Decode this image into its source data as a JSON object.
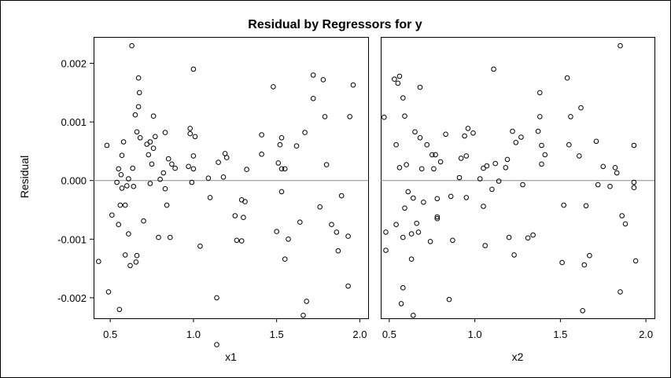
{
  "chart_data": {
    "type": "scatter",
    "title": "Residual by Regressors for y",
    "ylabel": "Residual",
    "ylim": [
      -0.00235,
      0.00245
    ],
    "yticks": [
      0.002,
      0.001,
      0.0,
      -0.001,
      -0.002
    ],
    "ytick_labels": [
      "0.002",
      "0.001",
      "0.000",
      "-0.001",
      "-0.002"
    ],
    "reference_line_y": 0,
    "grid": false,
    "panels": [
      {
        "xlabel": "x1",
        "xlim": [
          0.4,
          2.05
        ],
        "xticks": [
          0.5,
          1.0,
          1.5,
          2.0
        ],
        "xtick_labels": [
          "0.5",
          "1.0",
          "1.5",
          "2.0"
        ],
        "points": [
          [
            0.43,
            -0.00138
          ],
          [
            0.48,
            0.0006
          ],
          [
            0.49,
            -0.0019
          ],
          [
            0.51,
            -0.00059
          ],
          [
            0.54,
            -3e-05
          ],
          [
            0.55,
            0.0002
          ],
          [
            0.55,
            -0.00075
          ],
          [
            0.555,
            -0.0022
          ],
          [
            0.56,
            -0.00042
          ],
          [
            0.565,
            0.0001
          ],
          [
            0.57,
            0.00043
          ],
          [
            0.57,
            -0.00013
          ],
          [
            0.58,
            0.00066
          ],
          [
            0.59,
            -0.00042
          ],
          [
            0.59,
            -0.00127
          ],
          [
            0.6,
            -9e-05
          ],
          [
            0.61,
            3e-05
          ],
          [
            0.61,
            -0.00091
          ],
          [
            0.62,
            -0.00145
          ],
          [
            0.63,
            0.0023
          ],
          [
            0.635,
            0.00021
          ],
          [
            0.64,
            -0.0001
          ],
          [
            0.65,
            0.00112
          ],
          [
            0.655,
            -0.00139
          ],
          [
            0.66,
            -0.00128
          ],
          [
            0.66,
            0.00083
          ],
          [
            0.67,
            0.00126
          ],
          [
            0.67,
            0.00175
          ],
          [
            0.675,
            0.0015
          ],
          [
            0.68,
            0.00073
          ],
          [
            0.7,
            -0.00069
          ],
          [
            0.72,
            0.00062
          ],
          [
            0.73,
            0.00044
          ],
          [
            0.74,
            -5e-05
          ],
          [
            0.74,
            0.00066
          ],
          [
            0.75,
            0.00028
          ],
          [
            0.76,
            0.0011
          ],
          [
            0.76,
            0.00055
          ],
          [
            0.77,
            0.00075
          ],
          [
            0.79,
            -0.00097
          ],
          [
            0.8,
            2e-05
          ],
          [
            0.82,
            0.00013
          ],
          [
            0.83,
            0.00082
          ],
          [
            0.83,
            -0.00014
          ],
          [
            0.84,
            -0.00042
          ],
          [
            0.85,
            0.00037
          ],
          [
            0.86,
            -0.00097
          ],
          [
            0.87,
            0.00028
          ],
          [
            0.89,
            0.00021
          ],
          [
            0.97,
            0.00024
          ],
          [
            0.98,
            0.00089
          ],
          [
            0.98,
            0.0008
          ],
          [
            0.99,
            -3e-05
          ],
          [
            1.0,
            0.00042
          ],
          [
            1.0,
            0.0002
          ],
          [
            1.01,
            0.00075
          ],
          [
            1.0,
            0.0019
          ],
          [
            1.04,
            -0.00112
          ],
          [
            1.09,
            4e-05
          ],
          [
            1.1,
            -0.00029
          ],
          [
            1.14,
            -0.0028
          ],
          [
            1.14,
            -0.002
          ],
          [
            1.15,
            0.00031
          ],
          [
            1.18,
            6e-05
          ],
          [
            1.19,
            0.00046
          ],
          [
            1.2,
            0.00039
          ],
          [
            1.25,
            -0.0006
          ],
          [
            1.26,
            -0.00102
          ],
          [
            1.29,
            -0.00103
          ],
          [
            1.29,
            -0.00033
          ],
          [
            1.3,
            -0.00063
          ],
          [
            1.31,
            -0.00036
          ],
          [
            1.32,
            0.00019
          ],
          [
            1.41,
            0.00078
          ],
          [
            1.41,
            0.00045
          ],
          [
            1.48,
            0.0016
          ],
          [
            1.5,
            -0.00087
          ],
          [
            1.51,
            0.0003
          ],
          [
            1.52,
            0.00061
          ],
          [
            1.53,
            0.00073
          ],
          [
            1.53,
            0.0002
          ],
          [
            1.53,
            -0.00019
          ],
          [
            1.55,
            -0.00134
          ],
          [
            1.55,
            0.0002
          ],
          [
            1.57,
            -0.001
          ],
          [
            1.62,
            0.00059
          ],
          [
            1.64,
            -0.00071
          ],
          [
            1.66,
            -0.0023
          ],
          [
            1.67,
            0.00082
          ],
          [
            1.68,
            -0.00206
          ],
          [
            1.72,
            0.0014
          ],
          [
            1.72,
            0.0018
          ],
          [
            1.76,
            -0.00045
          ],
          [
            1.78,
            0.00172
          ],
          [
            1.79,
            0.00109
          ],
          [
            1.8,
            0.00027
          ],
          [
            1.83,
            -0.00075
          ],
          [
            1.86,
            -0.00088
          ],
          [
            1.87,
            -0.0012
          ],
          [
            1.89,
            -0.00026
          ],
          [
            1.93,
            -0.0018
          ],
          [
            1.93,
            -0.00095
          ],
          [
            1.94,
            0.00109
          ],
          [
            1.96,
            0.00163
          ]
        ]
      },
      {
        "xlabel": "x2",
        "xlim": [
          0.45,
          2.05
        ],
        "xticks": [
          0.5,
          1.0,
          1.5,
          2.0
        ],
        "xtick_labels": [
          "0.5",
          "1.0",
          "1.5",
          "2.0"
        ],
        "points": [
          [
            0.47,
            0.00108
          ],
          [
            0.48,
            -0.00088
          ],
          [
            0.48,
            -0.00119
          ],
          [
            0.53,
            0.00173
          ],
          [
            0.54,
            0.00061
          ],
          [
            0.54,
            -0.00075
          ],
          [
            0.55,
            0.00166
          ],
          [
            0.56,
            0.00178
          ],
          [
            0.56,
            0.00022
          ],
          [
            0.57,
            -0.0021
          ],
          [
            0.58,
            -0.00183
          ],
          [
            0.58,
            -0.00097
          ],
          [
            0.58,
            0.00141
          ],
          [
            0.59,
            0.0011
          ],
          [
            0.59,
            -0.00047
          ],
          [
            0.6,
            0.00027
          ],
          [
            0.61,
            -0.00019
          ],
          [
            0.63,
            -0.00091
          ],
          [
            0.63,
            -0.00134
          ],
          [
            0.64,
            -0.0023
          ],
          [
            0.64,
            -0.0003
          ],
          [
            0.65,
            0.00083
          ],
          [
            0.66,
            -0.00073
          ],
          [
            0.67,
            -0.00088
          ],
          [
            0.68,
            0.00073
          ],
          [
            0.68,
            0.00159
          ],
          [
            0.69,
            0.0002
          ],
          [
            0.7,
            -0.00037
          ],
          [
            0.72,
            0.00061
          ],
          [
            0.74,
            -0.00104
          ],
          [
            0.75,
            0.00044
          ],
          [
            0.76,
            0.0002
          ],
          [
            0.77,
            0.00044
          ],
          [
            0.78,
            -0.00062
          ],
          [
            0.78,
            -0.00065
          ],
          [
            0.78,
            -0.00031
          ],
          [
            0.8,
            0.00032
          ],
          [
            0.83,
            0.00079
          ],
          [
            0.85,
            -0.00203
          ],
          [
            0.86,
            -0.00027
          ],
          [
            0.87,
            -0.00102
          ],
          [
            0.91,
            5e-05
          ],
          [
            0.92,
            0.00038
          ],
          [
            0.94,
            0.00076
          ],
          [
            0.95,
            0.00042
          ],
          [
            0.95,
            -0.00029
          ],
          [
            0.96,
            0.00089
          ],
          [
            0.99,
            0.00081
          ],
          [
            1.03,
            3e-05
          ],
          [
            1.05,
            -0.00044
          ],
          [
            1.05,
            0.00021
          ],
          [
            1.06,
            -0.00111
          ],
          [
            1.07,
            0.00025
          ],
          [
            1.1,
            -0.00015
          ],
          [
            1.11,
            0.0019
          ],
          [
            1.12,
            0.00029
          ],
          [
            1.14,
            -1e-05
          ],
          [
            1.18,
            0.00022
          ],
          [
            1.19,
            0.00036
          ],
          [
            1.2,
            -0.00097
          ],
          [
            1.22,
            0.00084
          ],
          [
            1.23,
            -0.00127
          ],
          [
            1.24,
            0.00065
          ],
          [
            1.27,
            0.00074
          ],
          [
            1.28,
            -7e-05
          ],
          [
            1.31,
            -0.00098
          ],
          [
            1.34,
            -0.00093
          ],
          [
            1.37,
            0.00084
          ],
          [
            1.38,
            0.0015
          ],
          [
            1.38,
            0.00109
          ],
          [
            1.39,
            0.0006
          ],
          [
            1.39,
            0.00028
          ],
          [
            1.41,
            0.00044
          ],
          [
            1.51,
            -0.0014
          ],
          [
            1.52,
            -0.00042
          ],
          [
            1.54,
            0.00175
          ],
          [
            1.55,
            0.00061
          ],
          [
            1.56,
            0.00109
          ],
          [
            1.61,
            0.00042
          ],
          [
            1.62,
            0.00124
          ],
          [
            1.63,
            -0.00222
          ],
          [
            1.64,
            -0.00144
          ],
          [
            1.65,
            -0.00043
          ],
          [
            1.67,
            -0.00128
          ],
          [
            1.71,
            0.00067
          ],
          [
            1.72,
            -7e-05
          ],
          [
            1.75,
            0.00024
          ],
          [
            1.79,
            -0.0001
          ],
          [
            1.82,
            0.00022
          ],
          [
            1.83,
            0.00013
          ],
          [
            1.85,
            0.0023
          ],
          [
            1.85,
            -0.0019
          ],
          [
            1.86,
            -0.0006
          ],
          [
            1.88,
            -0.00074
          ],
          [
            1.93,
            0.0006
          ],
          [
            1.93,
            -3e-05
          ],
          [
            1.93,
            -0.00012
          ],
          [
            1.94,
            -0.00137
          ]
        ]
      }
    ]
  }
}
